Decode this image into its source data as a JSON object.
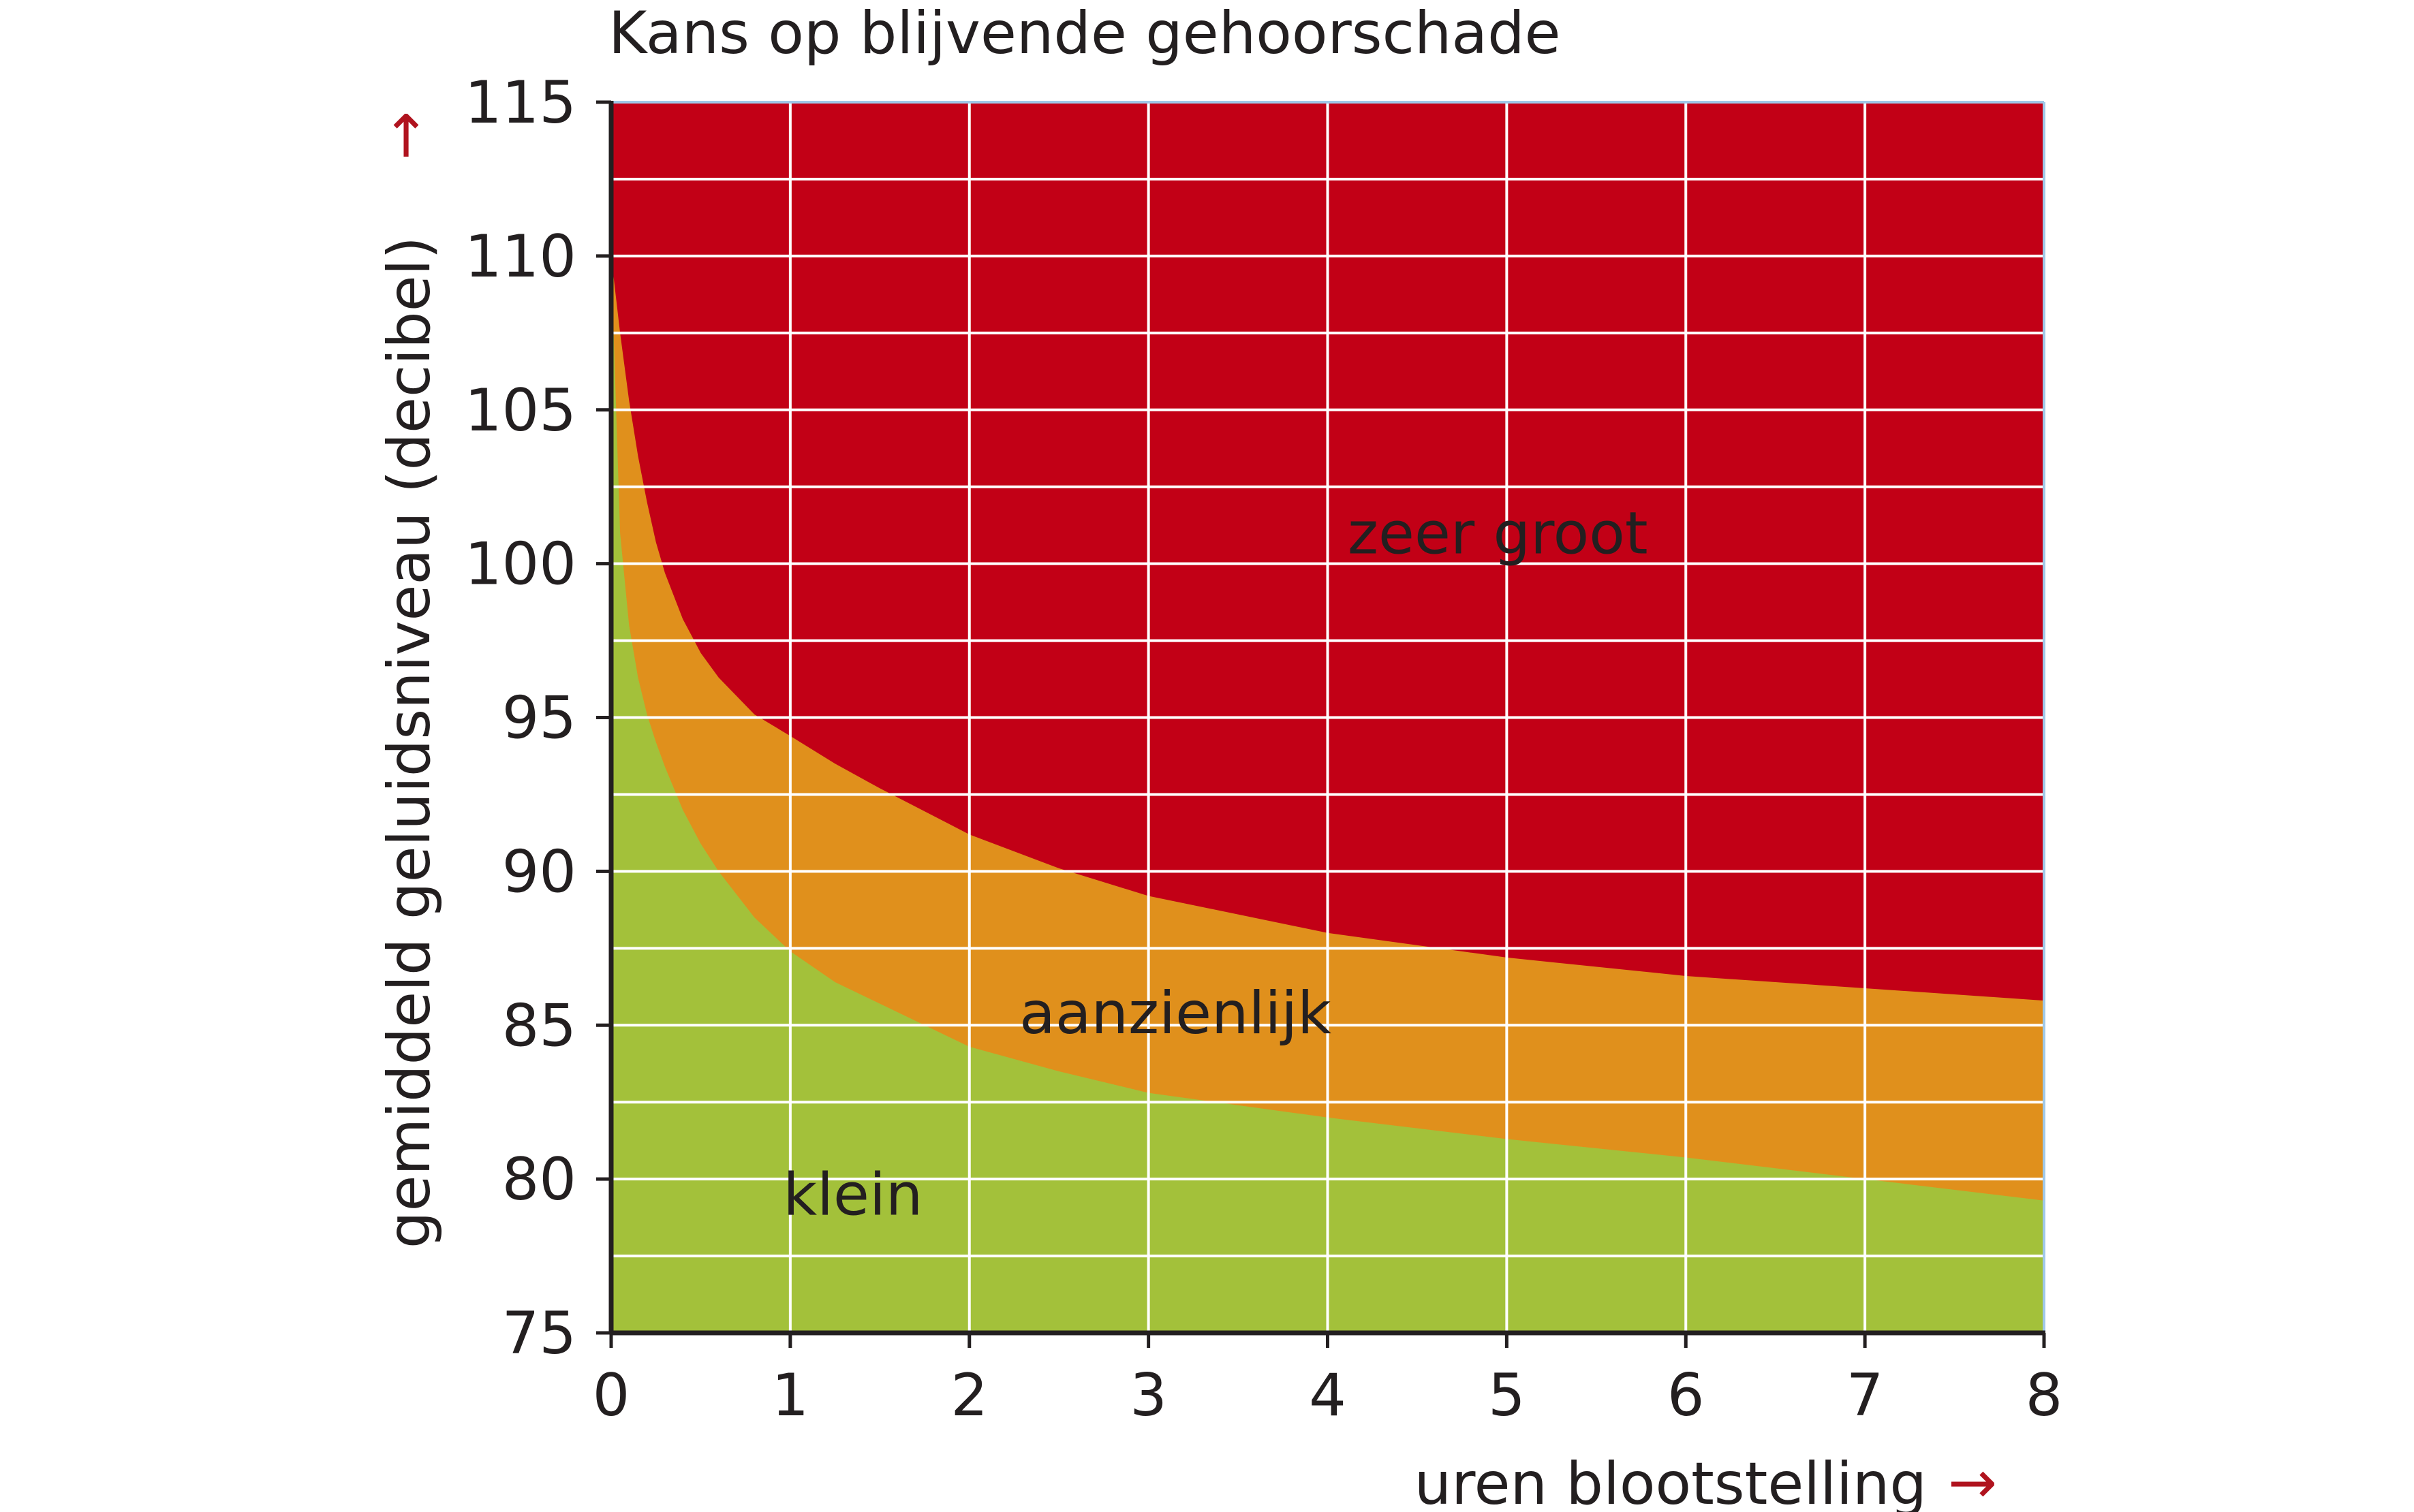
{
  "chart_data": {
    "type": "area",
    "title": "Kans op blijvende gehoorschade",
    "xlabel": "uren blootstelling",
    "ylabel": "gemiddeld geluidsniveau (decibel)",
    "x_arrow": "→",
    "y_arrow": "↑",
    "xlim": [
      0,
      8
    ],
    "ylim": [
      75,
      115
    ],
    "x_ticks": [
      "0",
      "1",
      "2",
      "3",
      "4",
      "5",
      "6",
      "7",
      "8"
    ],
    "y_ticks": [
      "75",
      "80",
      "85",
      "90",
      "95",
      "100",
      "105",
      "110",
      "115"
    ],
    "x_tick_values": [
      0,
      1,
      2,
      3,
      4,
      5,
      6,
      7,
      8
    ],
    "y_tick_values": [
      75,
      80,
      85,
      90,
      95,
      100,
      105,
      110,
      115
    ],
    "minor_y_step": 2.5,
    "grid": true,
    "colors": {
      "klein": "#a3c13a",
      "aanzienlijk": "#e0901c",
      "zeer_groot": "#c20016",
      "grid": "#ffffff",
      "axis": "#231f20",
      "frame": "#9fc8e8",
      "arrow": "#b0131e"
    },
    "series": [
      {
        "name": "klein",
        "boundary_x": [
          0,
          0.05,
          0.1,
          0.15,
          0.2,
          0.25,
          0.3,
          0.4,
          0.5,
          0.6,
          0.8,
          1,
          1.25,
          1.5,
          2,
          2.5,
          3,
          4,
          5,
          6,
          7,
          8
        ],
        "boundary_y": [
          110,
          101,
          98,
          96.3,
          95.1,
          94.2,
          93.4,
          92,
          90.9,
          90,
          88.5,
          87.4,
          86.4,
          85.7,
          84.3,
          83.5,
          82.8,
          82.0,
          81.3,
          80.7,
          80.0,
          79.3
        ]
      },
      {
        "name": "aanzienlijk",
        "boundary_x": [
          0,
          0.05,
          0.1,
          0.15,
          0.2,
          0.25,
          0.3,
          0.4,
          0.5,
          0.6,
          0.8,
          1,
          1.25,
          1.5,
          2,
          2.5,
          3,
          4,
          5,
          6,
          7,
          8
        ],
        "boundary_y": [
          110,
          107.5,
          105.3,
          103.5,
          102,
          100.7,
          99.7,
          98.2,
          97.1,
          96.3,
          95.1,
          94.4,
          93.5,
          92.7,
          91.2,
          90.1,
          89.2,
          88.0,
          87.2,
          86.6,
          86.2,
          85.8
        ]
      },
      {
        "name": "zeer groot",
        "boundary_x": [
          0,
          8
        ],
        "boundary_y": [
          115,
          115
        ]
      }
    ],
    "annotations": [
      {
        "text": "klein",
        "x": 1.35,
        "y": 79.5
      },
      {
        "text": "aanzienlijk",
        "x": 3.15,
        "y": 85.4
      },
      {
        "text": "zeer groot",
        "x": 4.95,
        "y": 101.0
      }
    ]
  }
}
